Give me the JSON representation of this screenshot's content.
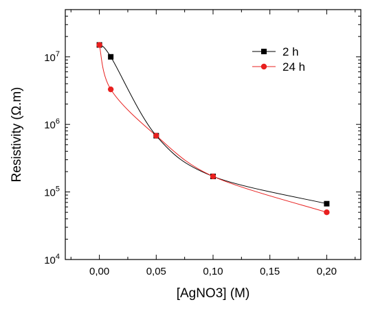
{
  "chart_data": {
    "type": "scatter",
    "xlabel": "[AgNO3] (M)",
    "ylabel": "Resistivity (Ω.m)",
    "y_scale": "log",
    "xlim": [
      -0.03,
      0.23
    ],
    "ylim": [
      10000,
      50000000
    ],
    "x_ticks": [
      0.0,
      0.05,
      0.1,
      0.15,
      0.2
    ],
    "x_tick_labels": [
      "0,00",
      "0,05",
      "0,10",
      "0,15",
      "0,20"
    ],
    "y_ticks": [
      10000,
      100000,
      1000000,
      10000000
    ],
    "y_tick_labels": [
      {
        "base": "10",
        "exp": "4"
      },
      {
        "base": "10",
        "exp": "5"
      },
      {
        "base": "10",
        "exp": "6"
      },
      {
        "base": "10",
        "exp": "7"
      }
    ],
    "grid": false,
    "legend_position": "top-right",
    "series": [
      {
        "name": "2 h",
        "color": "#000000",
        "marker": "square",
        "x": [
          0.0,
          0.01,
          0.05,
          0.1,
          0.2
        ],
        "y": [
          15000000,
          10000000,
          680000,
          170000,
          67000
        ]
      },
      {
        "name": "24 h",
        "color": "#e8201f",
        "marker": "circle",
        "x": [
          0.0,
          0.01,
          0.05,
          0.1,
          0.2
        ],
        "y": [
          15000000,
          3300000,
          680000,
          170000,
          50000
        ]
      }
    ]
  }
}
